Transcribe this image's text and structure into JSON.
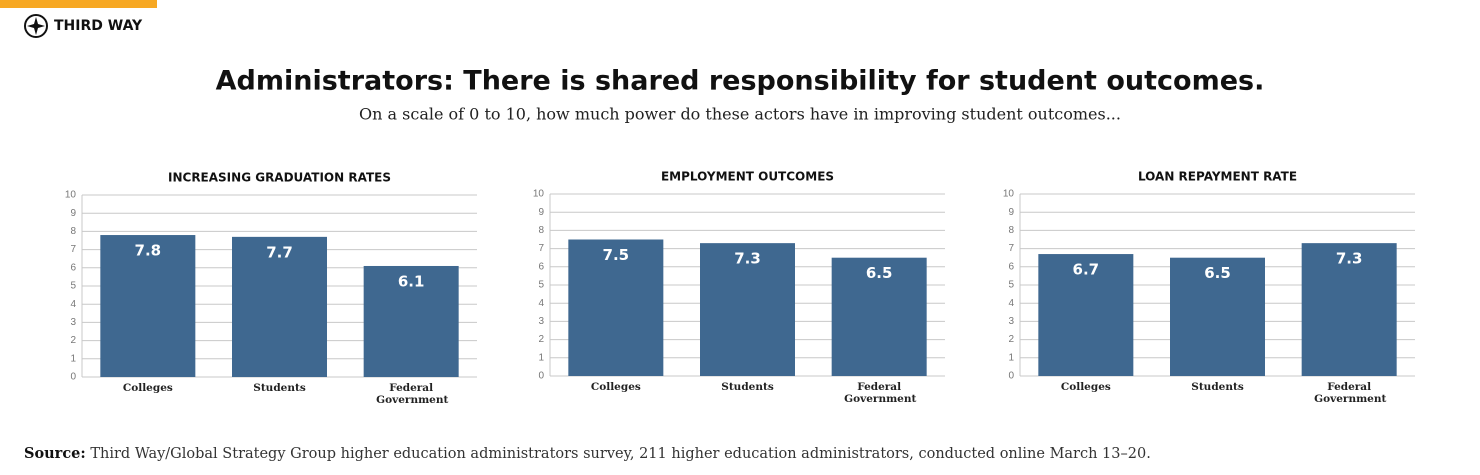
{
  "brand": "THIRD WAY",
  "title": "Administrators: There is shared responsibility for student outcomes.",
  "subtitle": "On a scale of 0 to 10, how much power do these actors have in improving student outcomes...",
  "source_label": "Source:",
  "source_text": "Third Way/Global Strategy Group higher education administrators survey, 211 higher education administrators, conducted online March 13–20.",
  "chart_data": [
    {
      "type": "bar",
      "title": "INCREASING GRADUATION RATES",
      "categories": [
        "Colleges",
        "Students",
        "Federal Government"
      ],
      "values": [
        7.8,
        7.7,
        6.1
      ],
      "color": "#3f6890",
      "ylim": [
        0,
        10
      ],
      "yticks": [
        0,
        1,
        2,
        3,
        4,
        5,
        6,
        7,
        8,
        9,
        10
      ],
      "grid": true
    },
    {
      "type": "bar",
      "title": "EMPLOYMENT OUTCOMES",
      "categories": [
        "Colleges",
        "Students",
        "Federal Government"
      ],
      "values": [
        7.5,
        7.3,
        6.5
      ],
      "color": "#3f6890",
      "ylim": [
        0,
        10
      ],
      "yticks": [
        0,
        1,
        2,
        3,
        4,
        5,
        6,
        7,
        8,
        9,
        10
      ],
      "grid": true
    },
    {
      "type": "bar",
      "title": "LOAN REPAYMENT RATE",
      "categories": [
        "Colleges",
        "Students",
        "Federal Government"
      ],
      "values": [
        6.7,
        6.5,
        7.3
      ],
      "color": "#3f6890",
      "ylim": [
        0,
        10
      ],
      "yticks": [
        0,
        1,
        2,
        3,
        4,
        5,
        6,
        7,
        8,
        9,
        10
      ],
      "grid": true
    }
  ]
}
